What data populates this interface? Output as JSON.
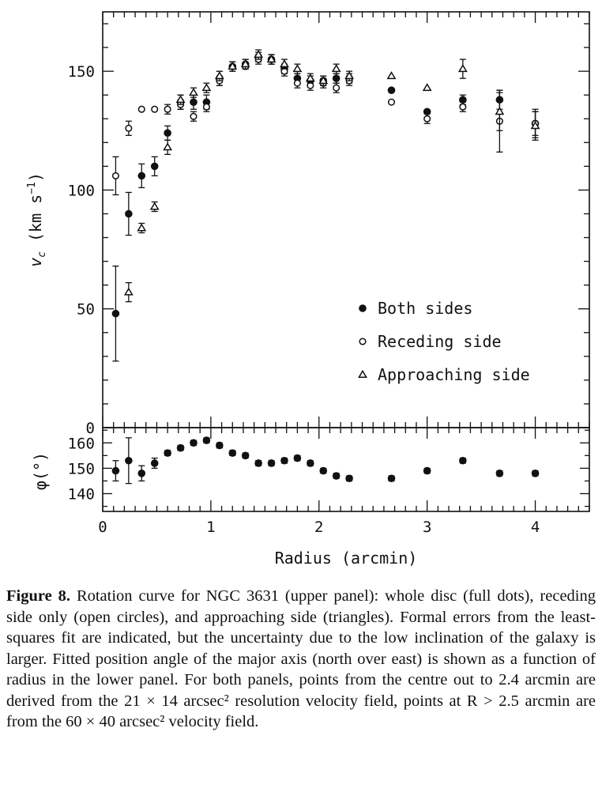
{
  "chart_data": [
    {
      "type": "scatter",
      "panel": "upper",
      "xlim": [
        0,
        4.5
      ],
      "ylim": [
        0,
        175
      ],
      "y_ticks": [
        0,
        50,
        100,
        150
      ],
      "ylabel_main": "v",
      "ylabel_sub": "c",
      "ylabel_units": " (km s",
      "ylabel_exp": "−1",
      "ylabel_close": ")",
      "grid": false,
      "legend_position": "right",
      "series": [
        {
          "name": "Both sides",
          "marker": "filled-circle",
          "x": [
            0.12,
            0.24,
            0.36,
            0.48,
            0.6,
            0.72,
            0.84,
            0.96,
            1.08,
            1.2,
            1.32,
            1.44,
            1.56,
            1.68,
            1.8,
            1.92,
            2.04,
            2.16,
            2.28,
            2.67,
            3.0,
            3.33,
            3.67,
            4.0
          ],
          "y": [
            48,
            90,
            106,
            110,
            124,
            137,
            137,
            137,
            147,
            152,
            153,
            156,
            155,
            151,
            147,
            146,
            146,
            147,
            147,
            142,
            133,
            138,
            138,
            128
          ],
          "err": [
            20,
            9,
            5,
            4,
            3,
            3,
            3,
            3,
            3,
            2,
            2,
            2,
            2,
            2,
            2,
            2,
            2,
            2,
            2,
            0,
            0,
            2,
            4,
            5
          ]
        },
        {
          "name": "Receding side",
          "marker": "open-circle",
          "x": [
            0.12,
            0.24,
            0.36,
            0.48,
            0.6,
            0.72,
            0.84,
            0.96,
            1.08,
            1.2,
            1.32,
            1.44,
            1.56,
            1.68,
            1.8,
            1.92,
            2.04,
            2.16,
            2.28,
            2.67,
            3.0,
            3.33,
            3.67,
            4.0
          ],
          "y": [
            106,
            126,
            134,
            134,
            134,
            136,
            131,
            135,
            146,
            152,
            152,
            155,
            155,
            150,
            145,
            144,
            145,
            143,
            146,
            137,
            130,
            135,
            129,
            128
          ],
          "err": [
            8,
            3,
            0,
            0,
            2,
            2,
            2,
            2,
            2,
            0,
            0,
            2,
            2,
            2,
            2,
            2,
            2,
            2,
            2,
            0,
            2,
            2,
            13,
            6
          ]
        },
        {
          "name": "Approaching side",
          "marker": "open-triangle",
          "x": [
            0.24,
            0.36,
            0.48,
            0.6,
            0.72,
            0.84,
            0.96,
            1.08,
            1.2,
            1.32,
            1.44,
            1.56,
            1.68,
            1.8,
            1.92,
            2.04,
            2.16,
            2.28,
            2.67,
            3.0,
            3.33,
            3.67,
            4.0
          ],
          "y": [
            57,
            84,
            93,
            118,
            138,
            141,
            143,
            148,
            152,
            153,
            157,
            155,
            153,
            151,
            147,
            146,
            151,
            148,
            148,
            143,
            151,
            133,
            127
          ],
          "err": [
            4,
            2,
            2,
            3,
            2,
            2,
            2,
            2,
            2,
            2,
            2,
            2,
            2,
            2,
            2,
            2,
            2,
            2,
            0,
            0,
            4,
            8,
            6
          ]
        }
      ]
    },
    {
      "type": "scatter",
      "panel": "lower",
      "xlim": [
        0,
        4.5
      ],
      "ylim": [
        133,
        166
      ],
      "y_ticks": [
        140,
        150,
        160
      ],
      "x_ticks": [
        0,
        1,
        2,
        3,
        4
      ],
      "ylabel": "φ(°)",
      "xlabel": "Radius (arcmin)",
      "series": [
        {
          "name": "Position angle",
          "marker": "filled-circle",
          "x": [
            0.12,
            0.24,
            0.36,
            0.48,
            0.6,
            0.72,
            0.84,
            0.96,
            1.08,
            1.2,
            1.32,
            1.44,
            1.56,
            1.68,
            1.8,
            1.92,
            2.04,
            2.16,
            2.28,
            2.67,
            3.0,
            3.33,
            3.67,
            4.0
          ],
          "y": [
            149,
            153,
            148,
            152,
            156,
            158,
            160,
            161,
            159,
            156,
            155,
            152,
            152,
            153,
            154,
            152,
            149,
            147,
            146,
            146,
            149,
            153,
            148,
            148
          ],
          "err": [
            4,
            9,
            3,
            2,
            1,
            1,
            1,
            1,
            1,
            1,
            1,
            1,
            1,
            1,
            1,
            1,
            1,
            1,
            1,
            1,
            1,
            1,
            1,
            1
          ]
        }
      ]
    }
  ],
  "caption": {
    "label": "Figure 8.",
    "text": "Rotation curve for NGC 3631 (upper panel): whole disc (full dots), receding side only (open circles), and approaching side (triangles). Formal errors from the least-squares fit are indicated, but the uncertainty due to the low inclination of the galaxy is larger. Fitted position angle of the major axis (north over east) is shown as a function of radius in the lower panel. For both panels, points from the centre out to 2.4 arcmin are derived from the 21 × 14 arcsec² resolution velocity field, points at R > 2.5 arcmin are from the 60 × 40 arcsec² velocity field."
  }
}
